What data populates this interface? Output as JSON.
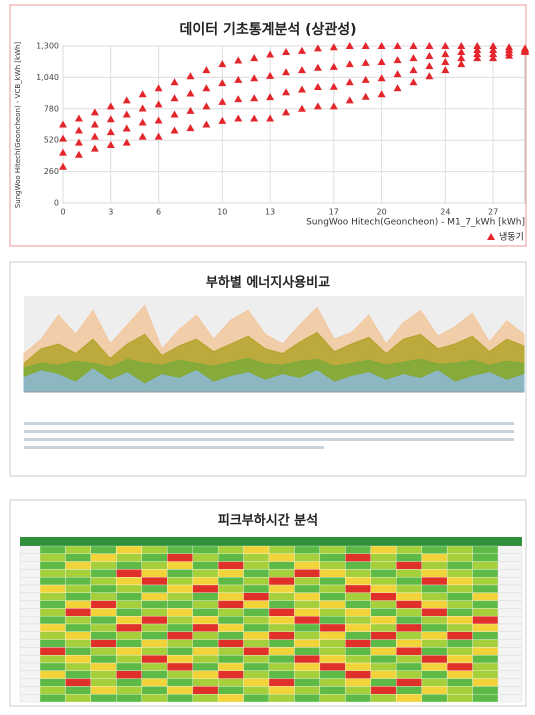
{
  "chart_data": [
    {
      "type": "scatter",
      "title": "데이터 기초통계분석 (상관성)",
      "x_label": "SungWoo Hitech(Geoncheon) - M1_7_kWh [kWh]",
      "y_label": "SungWoo Hitech(Geoncheon) - VCB_kWh [kWh]",
      "xlim": [
        0,
        29
      ],
      "xticks": [
        0,
        3,
        6,
        10,
        13,
        17,
        20,
        24,
        27
      ],
      "ylim": [
        0,
        1300
      ],
      "yticks": [
        0,
        260,
        520,
        780,
        {
          "value": 1040,
          "label": "1,040"
        },
        {
          "value": 1300,
          "label": "1,300"
        }
      ],
      "grid": true,
      "series": [
        {
          "name": "냉동기",
          "color": "#e3262b",
          "x": [
            0,
            0,
            0,
            0,
            1,
            1,
            1,
            1,
            2,
            2,
            2,
            2,
            3,
            3,
            3,
            3,
            4,
            4,
            4,
            4,
            5,
            5,
            5,
            5,
            6,
            6,
            6,
            6,
            7,
            7,
            7,
            7,
            8,
            8,
            8,
            8,
            9,
            9,
            9,
            9,
            10,
            10,
            10,
            10,
            11,
            11,
            11,
            11,
            12,
            12,
            12,
            12,
            13,
            13,
            13,
            13,
            14,
            14,
            14,
            14,
            15,
            15,
            15,
            15,
            16,
            16,
            16,
            16,
            17,
            17,
            17,
            17,
            18,
            18,
            18,
            18,
            19,
            19,
            19,
            19,
            20,
            20,
            20,
            20,
            21,
            21,
            21,
            21,
            22,
            22,
            22,
            22,
            23,
            23,
            23,
            23,
            24,
            24,
            24,
            24,
            25,
            25,
            25,
            25,
            26,
            26,
            26,
            26,
            27,
            27,
            27,
            27,
            28,
            28,
            28,
            28,
            29,
            29,
            29,
            29
          ],
          "y": [
            300,
            417,
            533,
            650,
            400,
            500,
            600,
            700,
            450,
            550,
            650,
            750,
            480,
            587,
            693,
            800,
            500,
            617,
            733,
            850,
            550,
            667,
            783,
            900,
            550,
            683,
            817,
            950,
            600,
            733,
            867,
            1000,
            620,
            763,
            907,
            1050,
            650,
            800,
            950,
            1100,
            680,
            837,
            993,
            1150,
            700,
            860,
            1020,
            1180,
            700,
            867,
            1033,
            1200,
            700,
            877,
            1053,
            1230,
            750,
            917,
            1083,
            1250,
            780,
            940,
            1100,
            1260,
            800,
            960,
            1120,
            1280,
            800,
            963,
            1127,
            1290,
            850,
            1000,
            1150,
            1300,
            880,
            1020,
            1160,
            1300,
            900,
            1033,
            1167,
            1300,
            950,
            1067,
            1183,
            1300,
            1000,
            1100,
            1200,
            1300,
            1050,
            1133,
            1217,
            1300,
            1100,
            1167,
            1233,
            1300,
            1150,
            1200,
            1250,
            1300,
            1200,
            1233,
            1267,
            1300,
            1200,
            1233,
            1267,
            1300,
            1220,
            1243,
            1267,
            1290,
            1250,
            1260,
            1270,
            1280
          ]
        }
      ],
      "legend": "bottom-right"
    },
    {
      "type": "area",
      "title": "부하별 에너지사용비교",
      "ylim": [
        0,
        100
      ],
      "series": [
        {
          "color": "#f2c79d",
          "values": [
            40,
            55,
            80,
            60,
            85,
            50,
            70,
            90,
            45,
            65,
            80,
            55,
            75,
            85,
            60,
            50,
            70,
            88,
            55,
            62,
            80,
            50,
            72,
            85,
            58,
            68,
            82,
            52,
            74,
            60
          ]
        },
        {
          "color": "#b3a32a",
          "values": [
            30,
            45,
            50,
            40,
            55,
            35,
            50,
            60,
            38,
            48,
            55,
            42,
            50,
            58,
            45,
            40,
            52,
            62,
            42,
            50,
            57,
            40,
            55,
            60,
            45,
            50,
            58,
            42,
            55,
            48
          ]
        },
        {
          "color": "#7dab3a",
          "values": [
            25,
            30,
            28,
            32,
            30,
            26,
            34,
            30,
            28,
            33,
            30,
            27,
            31,
            35,
            29,
            28,
            32,
            34,
            27,
            30,
            33,
            28,
            31,
            34,
            29,
            30,
            33,
            28,
            32,
            30
          ]
        },
        {
          "color": "#8db7d8",
          "values": [
            15,
            22,
            18,
            10,
            24,
            12,
            20,
            8,
            18,
            14,
            22,
            10,
            16,
            20,
            12,
            18,
            14,
            22,
            10,
            16,
            20,
            12,
            18,
            14,
            22,
            10,
            16,
            20,
            12,
            18
          ]
        }
      ]
    },
    {
      "type": "heatmap",
      "title": "피크부하시간 분석",
      "colors": [
        "#5dba47",
        "#a6cf3c",
        "#f2d33a",
        "#e0302a"
      ],
      "values": [
        [
          0,
          1,
          0,
          2,
          1,
          0,
          0,
          1,
          2,
          1,
          0,
          1,
          0,
          2,
          1,
          0,
          1,
          0
        ],
        [
          1,
          0,
          2,
          1,
          0,
          3,
          1,
          0,
          1,
          2,
          1,
          0,
          3,
          1,
          0,
          2,
          1,
          0
        ],
        [
          0,
          2,
          1,
          0,
          1,
          2,
          0,
          3,
          1,
          0,
          2,
          1,
          0,
          1,
          3,
          1,
          0,
          1
        ],
        [
          1,
          1,
          0,
          3,
          2,
          0,
          1,
          2,
          0,
          1,
          3,
          2,
          1,
          0,
          1,
          2,
          1,
          0
        ],
        [
          0,
          0,
          1,
          2,
          3,
          1,
          2,
          0,
          1,
          3,
          1,
          0,
          2,
          1,
          0,
          3,
          2,
          1
        ],
        [
          2,
          1,
          0,
          1,
          0,
          2,
          3,
          1,
          0,
          2,
          0,
          1,
          3,
          2,
          1,
          0,
          1,
          0
        ],
        [
          1,
          0,
          1,
          0,
          2,
          1,
          0,
          2,
          3,
          1,
          2,
          0,
          1,
          3,
          2,
          1,
          0,
          2
        ],
        [
          0,
          2,
          3,
          1,
          0,
          0,
          1,
          3,
          2,
          0,
          1,
          2,
          0,
          1,
          3,
          2,
          1,
          0
        ],
        [
          1,
          3,
          2,
          0,
          1,
          2,
          0,
          1,
          0,
          3,
          2,
          1,
          2,
          0,
          1,
          3,
          0,
          1
        ],
        [
          0,
          1,
          0,
          2,
          3,
          1,
          2,
          0,
          1,
          2,
          3,
          0,
          1,
          2,
          0,
          1,
          2,
          3
        ],
        [
          2,
          0,
          1,
          3,
          1,
          0,
          3,
          2,
          0,
          1,
          0,
          3,
          2,
          1,
          3,
          0,
          1,
          2
        ],
        [
          1,
          2,
          0,
          1,
          0,
          3,
          1,
          0,
          2,
          3,
          1,
          2,
          0,
          3,
          1,
          2,
          3,
          0
        ],
        [
          0,
          1,
          3,
          0,
          2,
          1,
          0,
          3,
          1,
          0,
          2,
          1,
          3,
          0,
          2,
          1,
          0,
          1
        ],
        [
          3,
          0,
          1,
          2,
          1,
          0,
          2,
          1,
          3,
          2,
          0,
          1,
          0,
          2,
          3,
          0,
          1,
          2
        ],
        [
          1,
          2,
          0,
          1,
          3,
          2,
          1,
          0,
          1,
          0,
          3,
          2,
          1,
          0,
          1,
          3,
          2,
          0
        ],
        [
          0,
          1,
          2,
          0,
          1,
          3,
          0,
          2,
          0,
          1,
          2,
          3,
          2,
          1,
          0,
          2,
          3,
          1
        ],
        [
          2,
          0,
          1,
          3,
          0,
          1,
          2,
          3,
          1,
          0,
          1,
          0,
          3,
          2,
          1,
          0,
          2,
          1
        ],
        [
          0,
          3,
          1,
          0,
          2,
          0,
          1,
          1,
          2,
          3,
          0,
          1,
          2,
          0,
          3,
          1,
          0,
          2
        ],
        [
          1,
          0,
          2,
          1,
          0,
          2,
          3,
          0,
          1,
          2,
          1,
          0,
          1,
          3,
          0,
          2,
          1,
          0
        ],
        [
          0,
          1,
          0,
          0,
          1,
          0,
          1,
          2,
          0,
          1,
          0,
          1,
          0,
          1,
          2,
          0,
          1,
          0
        ]
      ]
    }
  ]
}
